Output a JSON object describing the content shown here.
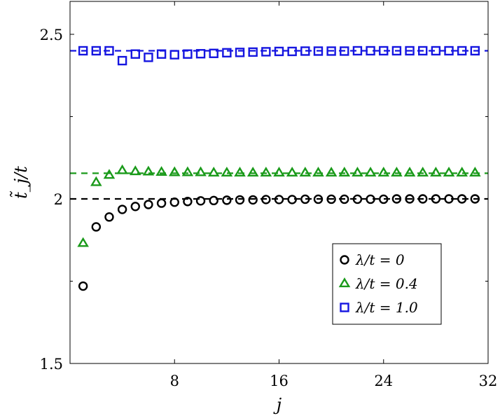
{
  "chart_data": {
    "type": "scatter",
    "xlabel": "j",
    "ylabel": "t̃_j/t",
    "xlim": [
      0,
      32
    ],
    "ylim": [
      1.5,
      2.6
    ],
    "xticks": [
      8,
      16,
      24,
      32
    ],
    "xtick_labels": [
      "8",
      "16",
      "24",
      "32"
    ],
    "yticks": [
      1.5,
      2,
      2.5
    ],
    "ytick_labels": [
      "1.5",
      "2",
      "2.5"
    ],
    "grid": false,
    "legend_position": "lower-right",
    "x": [
      1,
      2,
      3,
      4,
      5,
      6,
      7,
      8,
      9,
      10,
      11,
      12,
      13,
      14,
      15,
      16,
      17,
      18,
      19,
      20,
      21,
      22,
      23,
      24,
      25,
      26,
      27,
      28,
      29,
      30,
      31
    ],
    "series": [
      {
        "name": "λ/t = 0",
        "marker": "circle",
        "color": "#000000",
        "reference_line": 2.0,
        "values": [
          1.735,
          1.915,
          1.945,
          1.968,
          1.977,
          1.983,
          1.987,
          1.99,
          1.992,
          1.994,
          1.995,
          1.996,
          1.997,
          1.997,
          1.998,
          1.998,
          1.998,
          1.999,
          1.999,
          1.999,
          1.999,
          1.999,
          1.999,
          1.999,
          2.0,
          2.0,
          2.0,
          2.0,
          2.0,
          2.0,
          2.0
        ]
      },
      {
        "name": "λ/t = 0.4",
        "marker": "triangle",
        "color": "#1a9a1a",
        "reference_line": 2.078,
        "values": [
          1.865,
          2.05,
          2.072,
          2.086,
          2.083,
          2.082,
          2.081,
          2.08,
          2.08,
          2.08,
          2.079,
          2.079,
          2.079,
          2.079,
          2.079,
          2.079,
          2.079,
          2.079,
          2.079,
          2.079,
          2.079,
          2.079,
          2.079,
          2.079,
          2.079,
          2.079,
          2.079,
          2.079,
          2.079,
          2.079,
          2.079
        ]
      },
      {
        "name": "λ/t = 1.0",
        "marker": "square",
        "color": "#1515e0",
        "reference_line": 2.45,
        "values": [
          2.45,
          2.45,
          2.45,
          2.42,
          2.44,
          2.43,
          2.44,
          2.438,
          2.44,
          2.441,
          2.442,
          2.444,
          2.445,
          2.446,
          2.447,
          2.448,
          2.448,
          2.449,
          2.449,
          2.449,
          2.449,
          2.45,
          2.45,
          2.45,
          2.45,
          2.45,
          2.45,
          2.45,
          2.45,
          2.45,
          2.45
        ]
      }
    ]
  }
}
